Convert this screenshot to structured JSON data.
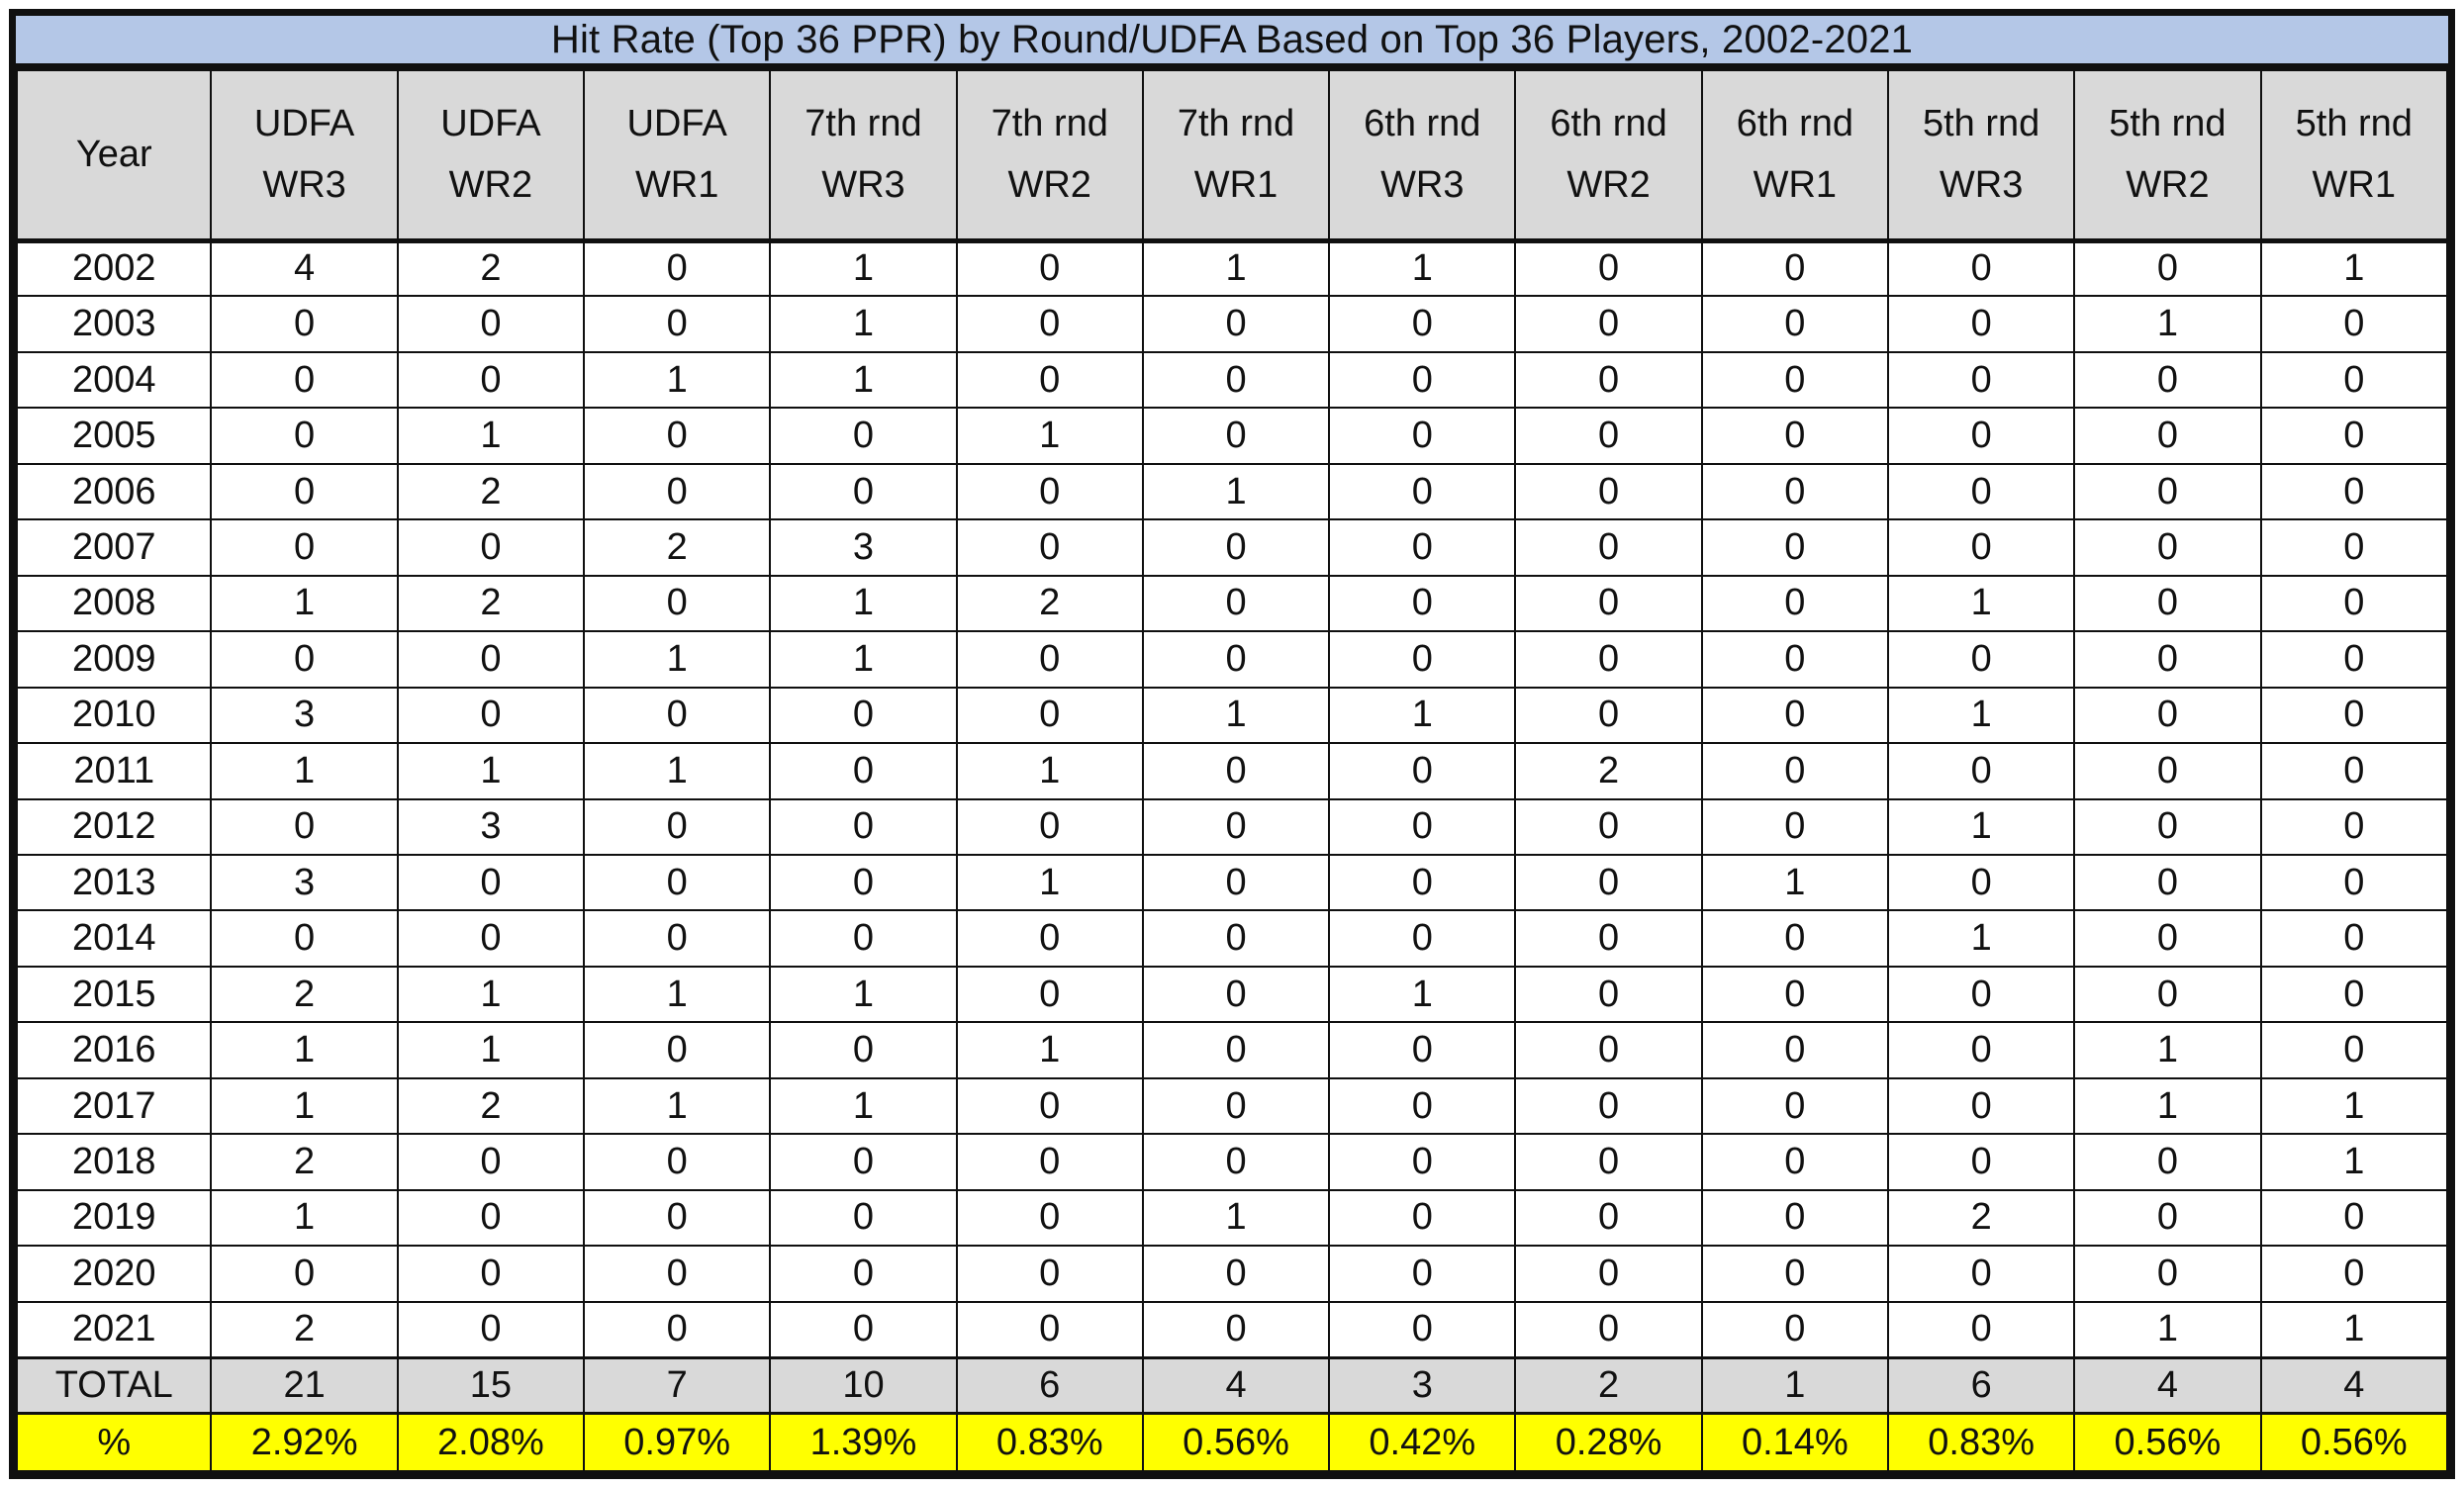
{
  "colors": {
    "title_bg": "#B4C7E7",
    "header_bg": "#D9D9D9",
    "total_bg": "#D9D9D9",
    "percent_bg": "#FFFF00",
    "border": "#101010"
  },
  "chart_data": {
    "type": "table",
    "title": "Hit Rate (Top 36 PPR) by Round/UDFA Based on Top 36 Players, 2002-2021",
    "columns": [
      [
        "Year"
      ],
      [
        "UDFA",
        "WR3"
      ],
      [
        "UDFA",
        "WR2"
      ],
      [
        "UDFA",
        "WR1"
      ],
      [
        "7th rnd",
        "WR3"
      ],
      [
        "7th rnd",
        "WR2"
      ],
      [
        "7th rnd",
        "WR1"
      ],
      [
        "6th rnd",
        "WR3"
      ],
      [
        "6th rnd",
        "WR2"
      ],
      [
        "6th rnd",
        "WR1"
      ],
      [
        "5th rnd",
        "WR3"
      ],
      [
        "5th rnd",
        "WR2"
      ],
      [
        "5th rnd",
        "WR1"
      ]
    ],
    "rows": [
      {
        "year": "2002",
        "values": [
          4,
          2,
          0,
          1,
          0,
          1,
          1,
          0,
          0,
          0,
          0,
          1
        ]
      },
      {
        "year": "2003",
        "values": [
          0,
          0,
          0,
          1,
          0,
          0,
          0,
          0,
          0,
          0,
          1,
          0
        ]
      },
      {
        "year": "2004",
        "values": [
          0,
          0,
          1,
          1,
          0,
          0,
          0,
          0,
          0,
          0,
          0,
          0
        ]
      },
      {
        "year": "2005",
        "values": [
          0,
          1,
          0,
          0,
          1,
          0,
          0,
          0,
          0,
          0,
          0,
          0
        ]
      },
      {
        "year": "2006",
        "values": [
          0,
          2,
          0,
          0,
          0,
          1,
          0,
          0,
          0,
          0,
          0,
          0
        ]
      },
      {
        "year": "2007",
        "values": [
          0,
          0,
          2,
          3,
          0,
          0,
          0,
          0,
          0,
          0,
          0,
          0
        ]
      },
      {
        "year": "2008",
        "values": [
          1,
          2,
          0,
          1,
          2,
          0,
          0,
          0,
          0,
          1,
          0,
          0
        ]
      },
      {
        "year": "2009",
        "values": [
          0,
          0,
          1,
          1,
          0,
          0,
          0,
          0,
          0,
          0,
          0,
          0
        ]
      },
      {
        "year": "2010",
        "values": [
          3,
          0,
          0,
          0,
          0,
          1,
          1,
          0,
          0,
          1,
          0,
          0
        ]
      },
      {
        "year": "2011",
        "values": [
          1,
          1,
          1,
          0,
          1,
          0,
          0,
          2,
          0,
          0,
          0,
          0
        ]
      },
      {
        "year": "2012",
        "values": [
          0,
          3,
          0,
          0,
          0,
          0,
          0,
          0,
          0,
          1,
          0,
          0
        ]
      },
      {
        "year": "2013",
        "values": [
          3,
          0,
          0,
          0,
          1,
          0,
          0,
          0,
          1,
          0,
          0,
          0
        ]
      },
      {
        "year": "2014",
        "values": [
          0,
          0,
          0,
          0,
          0,
          0,
          0,
          0,
          0,
          1,
          0,
          0
        ]
      },
      {
        "year": "2015",
        "values": [
          2,
          1,
          1,
          1,
          0,
          0,
          1,
          0,
          0,
          0,
          0,
          0
        ]
      },
      {
        "year": "2016",
        "values": [
          1,
          1,
          0,
          0,
          1,
          0,
          0,
          0,
          0,
          0,
          1,
          0
        ]
      },
      {
        "year": "2017",
        "values": [
          1,
          2,
          1,
          1,
          0,
          0,
          0,
          0,
          0,
          0,
          1,
          1
        ]
      },
      {
        "year": "2018",
        "values": [
          2,
          0,
          0,
          0,
          0,
          0,
          0,
          0,
          0,
          0,
          0,
          1
        ]
      },
      {
        "year": "2019",
        "values": [
          1,
          0,
          0,
          0,
          0,
          1,
          0,
          0,
          0,
          2,
          0,
          0
        ]
      },
      {
        "year": "2020",
        "values": [
          0,
          0,
          0,
          0,
          0,
          0,
          0,
          0,
          0,
          0,
          0,
          0
        ]
      },
      {
        "year": "2021",
        "values": [
          2,
          0,
          0,
          0,
          0,
          0,
          0,
          0,
          0,
          0,
          1,
          1
        ]
      }
    ],
    "total_row": {
      "label": "TOTAL",
      "values": [
        21,
        15,
        7,
        10,
        6,
        4,
        3,
        2,
        1,
        6,
        4,
        4
      ]
    },
    "percent_row": {
      "label": "%",
      "values": [
        "2.92%",
        "2.08%",
        "0.97%",
        "1.39%",
        "0.83%",
        "0.56%",
        "0.42%",
        "0.28%",
        "0.14%",
        "0.83%",
        "0.56%",
        "0.56%"
      ]
    }
  }
}
